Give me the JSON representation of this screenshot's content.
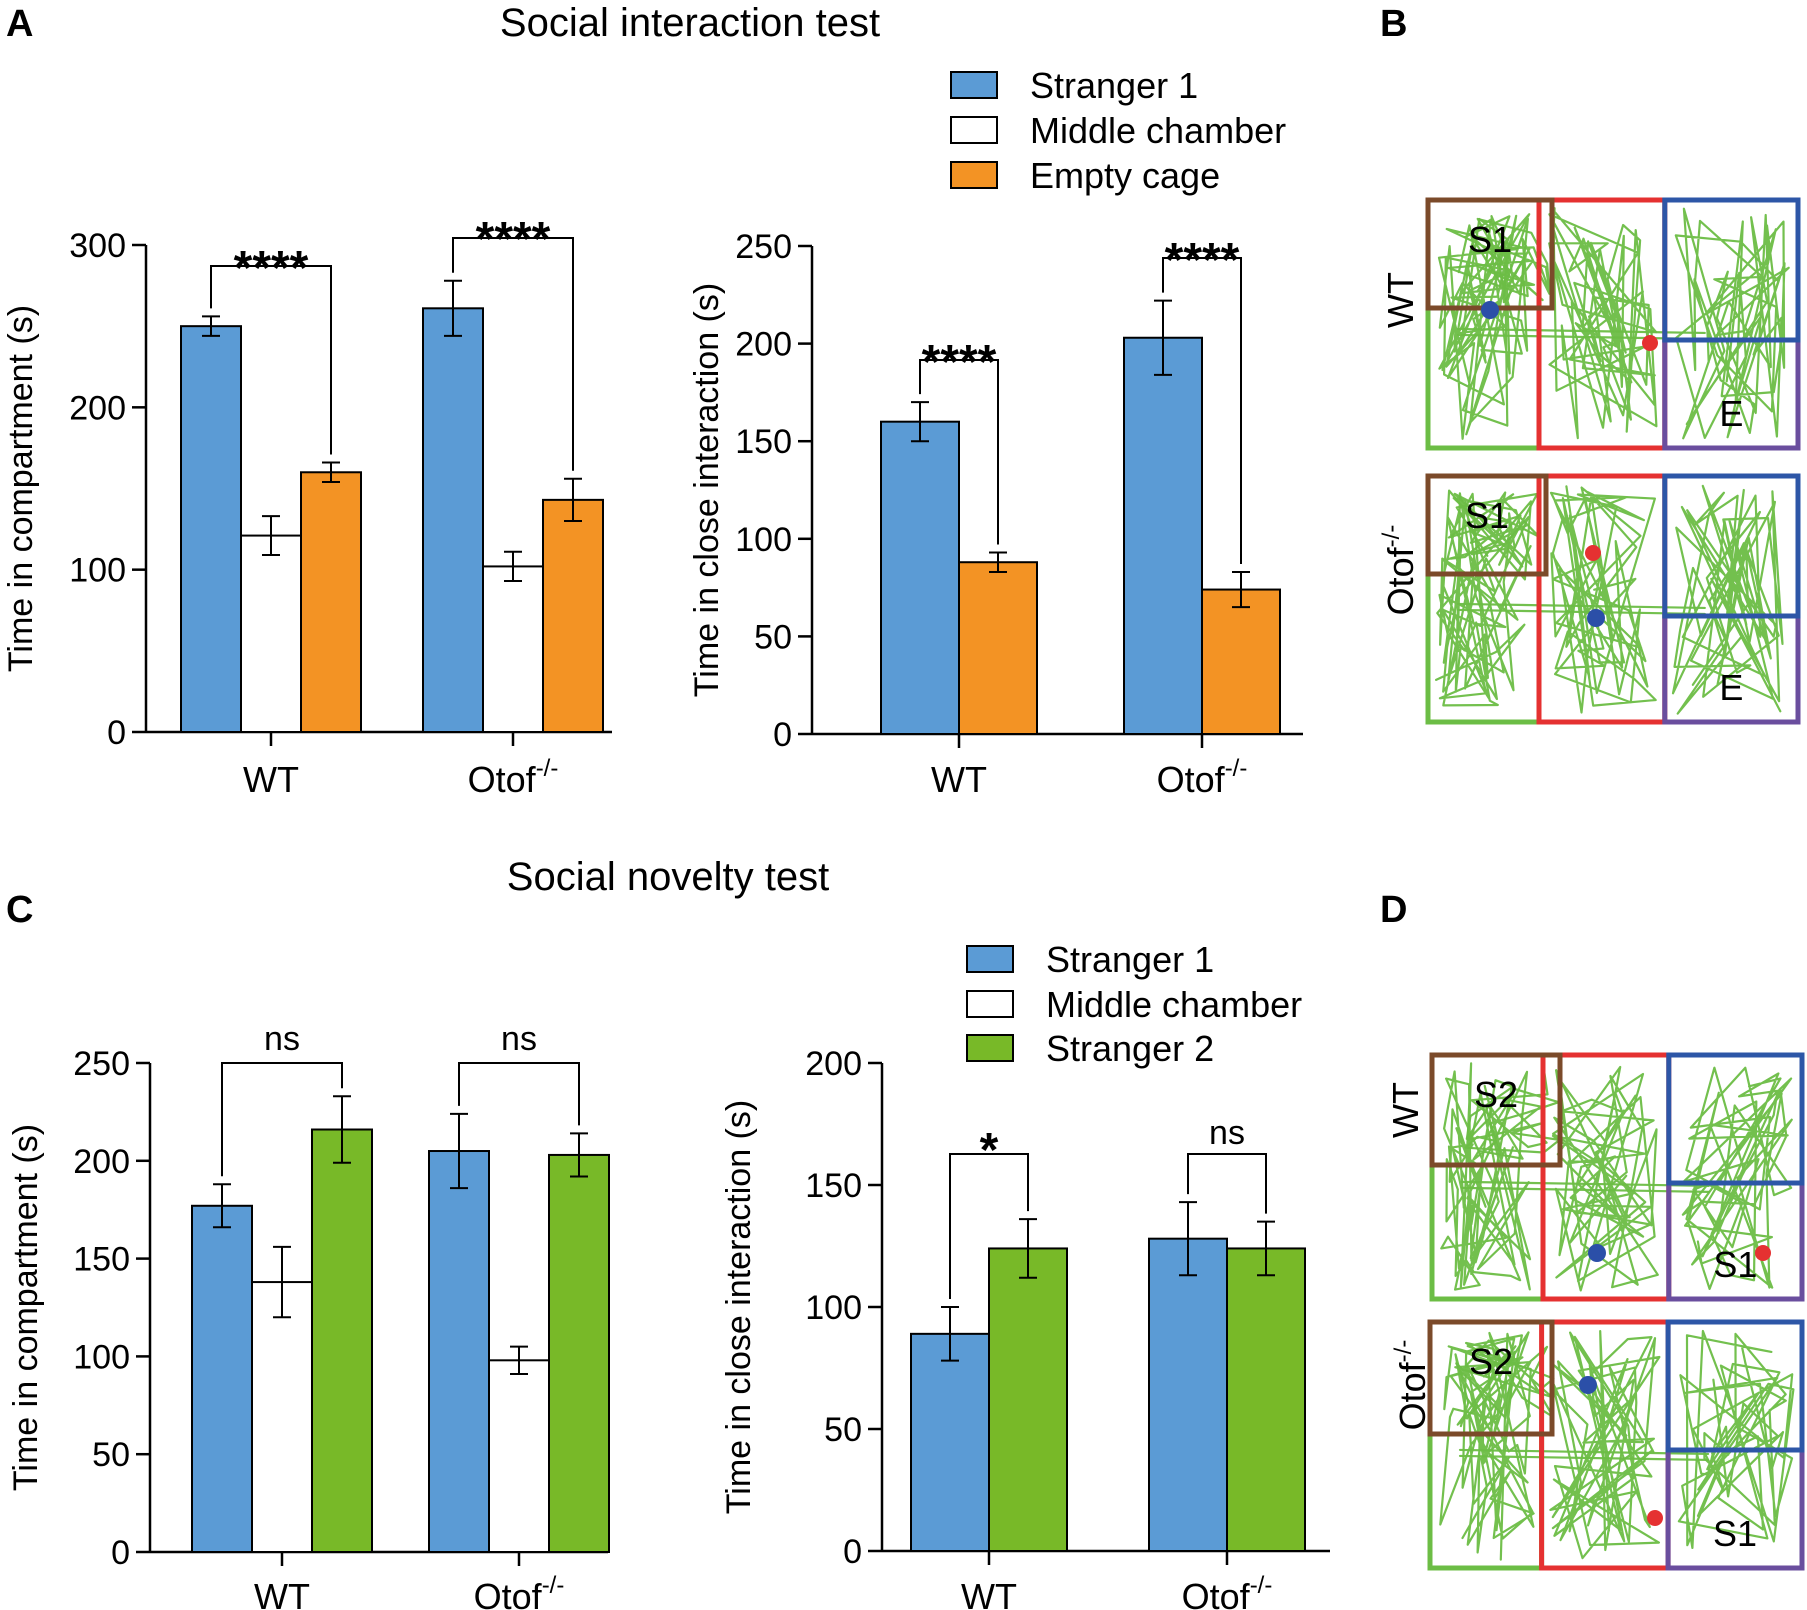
{
  "colors": {
    "stranger1": "#5b9bd5",
    "middle": "#ffffff",
    "empty_cage": "#f39324",
    "stranger2": "#78b928",
    "track": "#6cbd45",
    "zone_s": "#7b4a2a",
    "zone_middle": "#e53131",
    "zone_right_top": "#2d56a7",
    "zone_right_bottom": "#6a4e9e",
    "zone_left_bottom": "#6cbd45",
    "start_dot": "#2b4fa8",
    "end_dot": "#e53131"
  },
  "panels": {
    "A": {
      "letter": "A",
      "title": "Social interaction test"
    },
    "B": {
      "letter": "B"
    },
    "C": {
      "letter": "C",
      "title": "Social novelty test"
    },
    "D": {
      "letter": "D"
    }
  },
  "legends": {
    "A": [
      "Stranger 1",
      "Middle chamber",
      "Empty cage"
    ],
    "C": [
      "Stranger 1",
      "Middle chamber",
      "Stranger 2"
    ]
  },
  "group_labels": {
    "wt": "WT",
    "otof_base": "Otof",
    "otof_sup": "-/-"
  },
  "tracking": {
    "B": {
      "row1_label": "WT",
      "row2_label": "Otof",
      "row2_sup": "-/-",
      "left_zone": "S1",
      "right_zone": "E"
    },
    "D": {
      "row1_label": "WT",
      "row2_label": "Otof",
      "row2_sup": "-/-",
      "left_zone": "S2",
      "right_zone": "S1"
    }
  },
  "chart_data": [
    {
      "id": "A-left",
      "type": "bar",
      "ylabel": "Time in compartment (s)",
      "ylim": [
        0,
        300
      ],
      "yticks": [
        0,
        100,
        200,
        300
      ],
      "categories": [
        "WT",
        "Otof-/-"
      ],
      "series": [
        {
          "name": "Stranger 1",
          "color_key": "stranger1",
          "values": [
            250,
            261
          ],
          "errors": [
            6,
            17
          ]
        },
        {
          "name": "Middle chamber",
          "color_key": "middle",
          "values": [
            121,
            102
          ],
          "errors": [
            12,
            9
          ]
        },
        {
          "name": "Empty cage",
          "color_key": "empty_cage",
          "values": [
            160,
            143
          ],
          "errors": [
            6,
            13
          ]
        }
      ],
      "comparisons": [
        {
          "group": 0,
          "from_series": 0,
          "to_series": 2,
          "label": "****"
        },
        {
          "group": 1,
          "from_series": 0,
          "to_series": 2,
          "label": "****"
        }
      ]
    },
    {
      "id": "A-right",
      "type": "bar",
      "ylabel": "Time in close interaction (s)",
      "ylim": [
        0,
        250
      ],
      "yticks": [
        0,
        50,
        100,
        150,
        200,
        250
      ],
      "categories": [
        "WT",
        "Otof-/-"
      ],
      "series": [
        {
          "name": "Stranger 1",
          "color_key": "stranger1",
          "values": [
            160,
            203
          ],
          "errors": [
            10,
            19
          ]
        },
        {
          "name": "Empty cage",
          "color_key": "empty_cage",
          "values": [
            88,
            74
          ],
          "errors": [
            5,
            9
          ]
        }
      ],
      "comparisons": [
        {
          "group": 0,
          "from_series": 0,
          "to_series": 1,
          "label": "****"
        },
        {
          "group": 1,
          "from_series": 0,
          "to_series": 1,
          "label": "****"
        }
      ]
    },
    {
      "id": "C-left",
      "type": "bar",
      "ylabel": "Time in compartment (s)",
      "ylim": [
        0,
        250
      ],
      "yticks": [
        0,
        50,
        100,
        150,
        200,
        250
      ],
      "categories": [
        "WT",
        "Otof-/-"
      ],
      "series": [
        {
          "name": "Stranger 1",
          "color_key": "stranger1",
          "values": [
            177,
            205
          ],
          "errors": [
            11,
            19
          ]
        },
        {
          "name": "Middle chamber",
          "color_key": "middle",
          "values": [
            138,
            98
          ],
          "errors": [
            18,
            7
          ]
        },
        {
          "name": "Stranger 2",
          "color_key": "stranger2",
          "values": [
            216,
            203
          ],
          "errors": [
            17,
            11
          ]
        }
      ],
      "comparisons": [
        {
          "group": 0,
          "from_series": 0,
          "to_series": 2,
          "label": "ns"
        },
        {
          "group": 1,
          "from_series": 0,
          "to_series": 2,
          "label": "ns"
        }
      ]
    },
    {
      "id": "C-right",
      "type": "bar",
      "ylabel": "Time in close interaction (s)",
      "ylim": [
        0,
        200
      ],
      "yticks": [
        0,
        50,
        100,
        150,
        200
      ],
      "categories": [
        "WT",
        "Otof-/-"
      ],
      "series": [
        {
          "name": "Stranger 1",
          "color_key": "stranger1",
          "values": [
            89,
            128
          ],
          "errors": [
            11,
            15
          ]
        },
        {
          "name": "Stranger 2",
          "color_key": "stranger2",
          "values": [
            124,
            124
          ],
          "errors": [
            12,
            11
          ]
        }
      ],
      "comparisons": [
        {
          "group": 0,
          "from_series": 0,
          "to_series": 1,
          "label": "*"
        },
        {
          "group": 1,
          "from_series": 0,
          "to_series": 1,
          "label": "ns"
        }
      ]
    }
  ]
}
